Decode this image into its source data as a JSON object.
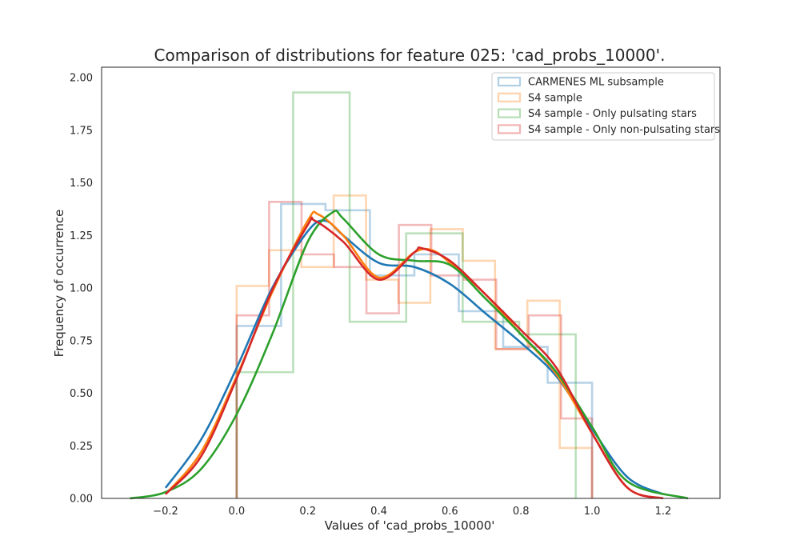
{
  "chart_data": {
    "type": "histogram+kde",
    "title": "Comparison of distributions for feature 025: 'cad_probs_10000'.",
    "xlabel": "Values of 'cad_probs_10000'",
    "ylabel": "Frequency of occurrence",
    "xlim": [
      -0.38,
      1.36
    ],
    "ylim": [
      0.0,
      2.05
    ],
    "x_ticks": [
      -0.2,
      0.0,
      0.2,
      0.4,
      0.6,
      0.8,
      1.0,
      1.2
    ],
    "x_tick_labels": [
      "−0.2",
      "0.0",
      "0.2",
      "0.4",
      "0.6",
      "0.8",
      "1.0",
      "1.2"
    ],
    "y_ticks": [
      0.0,
      0.25,
      0.5,
      0.75,
      1.0,
      1.25,
      1.5,
      1.75,
      2.0
    ],
    "y_tick_labels": [
      "0.00",
      "0.25",
      "0.50",
      "0.75",
      "1.00",
      "1.25",
      "1.50",
      "1.75",
      "2.00"
    ],
    "grid": false,
    "legend_position": "top-right",
    "series": [
      {
        "name": "CARMENES ML subsample",
        "color": "#1f77b4",
        "hist_edges": [
          0.0,
          0.125,
          0.25,
          0.375,
          0.5,
          0.625,
          0.75,
          0.875,
          1.0
        ],
        "hist_values": [
          0.82,
          1.4,
          1.37,
          1.06,
          1.16,
          0.89,
          0.72,
          0.55
        ],
        "kde_x": [
          -0.2,
          -0.1,
          0.0,
          0.1,
          0.2,
          0.25,
          0.3,
          0.4,
          0.5,
          0.6,
          0.7,
          0.8,
          0.9,
          1.0,
          1.1,
          1.2
        ],
        "kde_y": [
          0.05,
          0.28,
          0.62,
          1.0,
          1.27,
          1.32,
          1.25,
          1.12,
          1.1,
          1.02,
          0.88,
          0.74,
          0.58,
          0.33,
          0.1,
          0.02
        ]
      },
      {
        "name": "S4 sample",
        "color": "#ff7f0e",
        "hist_edges": [
          0.0,
          0.091,
          0.182,
          0.273,
          0.364,
          0.455,
          0.545,
          0.636,
          0.727,
          0.818,
          0.909,
          1.0
        ],
        "hist_values": [
          1.01,
          1.18,
          1.1,
          1.44,
          1.04,
          0.93,
          1.28,
          1.13,
          0.71,
          0.94,
          0.24
        ],
        "kde_x": [
          -0.2,
          -0.1,
          0.0,
          0.1,
          0.2,
          0.23,
          0.3,
          0.4,
          0.5,
          0.55,
          0.6,
          0.7,
          0.8,
          0.9,
          1.0,
          1.1,
          1.2
        ],
        "kde_y": [
          0.02,
          0.22,
          0.58,
          0.98,
          1.32,
          1.35,
          1.25,
          1.05,
          1.17,
          1.18,
          1.12,
          0.97,
          0.78,
          0.59,
          0.31,
          0.05,
          0.0
        ]
      },
      {
        "name": "S4 sample - Only pulsating stars",
        "color": "#2ca02c",
        "hist_edges": [
          0.0,
          0.159,
          0.318,
          0.477,
          0.636,
          0.795,
          0.954
        ],
        "hist_values": [
          0.6,
          1.93,
          0.84,
          1.26,
          0.84,
          0.78
        ],
        "kde_x": [
          -0.3,
          -0.2,
          -0.1,
          0.0,
          0.1,
          0.2,
          0.27,
          0.3,
          0.4,
          0.5,
          0.6,
          0.7,
          0.8,
          0.9,
          1.0,
          1.1,
          1.27
        ],
        "kde_y": [
          0.0,
          0.03,
          0.14,
          0.4,
          0.78,
          1.22,
          1.36,
          1.33,
          1.16,
          1.13,
          1.11,
          0.95,
          0.78,
          0.6,
          0.34,
          0.08,
          0.0
        ]
      },
      {
        "name": "S4 sample - Only non-pulsating stars",
        "color": "#d62728",
        "hist_edges": [
          0.0,
          0.0913,
          0.1826,
          0.2739,
          0.3652,
          0.4565,
          0.5478,
          0.6391,
          0.7304,
          0.8217,
          0.913,
          1.0
        ],
        "hist_values": [
          0.87,
          1.41,
          1.16,
          1.1,
          0.88,
          1.3,
          1.06,
          1.04,
          0.71,
          0.87,
          0.38
        ],
        "kde_x": [
          -0.2,
          -0.1,
          0.0,
          0.1,
          0.2,
          0.22,
          0.3,
          0.4,
          0.5,
          0.52,
          0.6,
          0.7,
          0.8,
          0.9,
          1.0,
          1.1,
          1.2
        ],
        "kde_y": [
          0.02,
          0.2,
          0.57,
          0.99,
          1.3,
          1.32,
          1.22,
          1.04,
          1.17,
          1.19,
          1.13,
          0.97,
          0.8,
          0.62,
          0.31,
          0.05,
          0.0
        ]
      }
    ]
  }
}
